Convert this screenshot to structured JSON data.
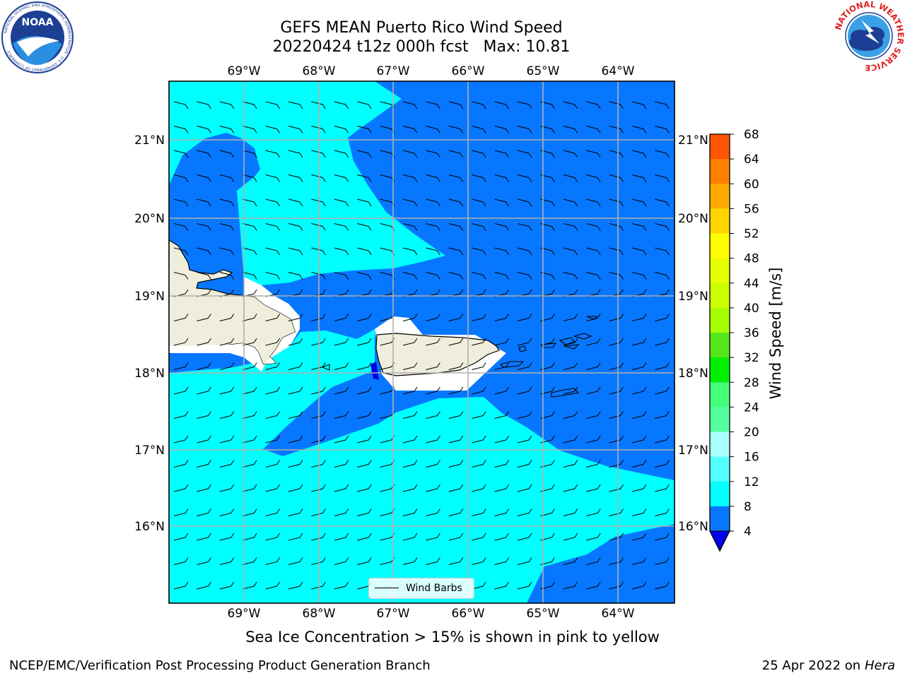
{
  "title": {
    "line1": "GEFS MEAN Puerto Rico Wind Speed",
    "line2": "20220424 t12z 000h fcst   Max: 10.81"
  },
  "map": {
    "lon_ticks": [
      "69°W",
      "68°W",
      "67°W",
      "66°W",
      "65°W",
      "64°W"
    ],
    "lat_ticks": [
      "21°N",
      "20°N",
      "19°N",
      "18°N",
      "17°N",
      "16°N"
    ],
    "colors": {
      "land": "#efeedc",
      "low": "#0877ff",
      "mid": "#00ffff",
      "min": "#0000e6",
      "grid": "#b0b0b0"
    }
  },
  "legend": {
    "label": "Wind Barbs"
  },
  "colorbar": {
    "label": "Wind Speed [m/s]",
    "ticks": [
      "68",
      "64",
      "60",
      "56",
      "52",
      "48",
      "44",
      "40",
      "36",
      "32",
      "28",
      "24",
      "20",
      "16",
      "12",
      "8",
      "4"
    ],
    "colors": [
      "#ff0000",
      "#ff2a00",
      "#ff5500",
      "#ff8000",
      "#ffaa00",
      "#ffd500",
      "#ffff00",
      "#e5ff00",
      "#cbff00",
      "#a6ff00",
      "#55e61a",
      "#00f000",
      "#44ff77",
      "#55ff9e",
      "#aaffff",
      "#55ffff",
      "#00ffff",
      "#0877ff"
    ],
    "under_color": "#0000ee"
  },
  "subcaption": "Sea Ice Concentration > 15% is shown in pink to yellow",
  "footer": {
    "left": "NCEP/EMC/Verification Post Processing Product Generation Branch",
    "right_date": "25 Apr 2022 on ",
    "right_host": "Hera"
  },
  "logos": {
    "left": "noaa-logo-icon",
    "right": "nws-logo-icon",
    "left_text": "NOAA",
    "left_ring": "NATIONAL OCEANIC AND ATMOSPHERIC ADMINISTRATION · U.S. DEPARTMENT OF COMMERCE",
    "right_ring": "NATIONAL WEATHER SERVICE"
  }
}
